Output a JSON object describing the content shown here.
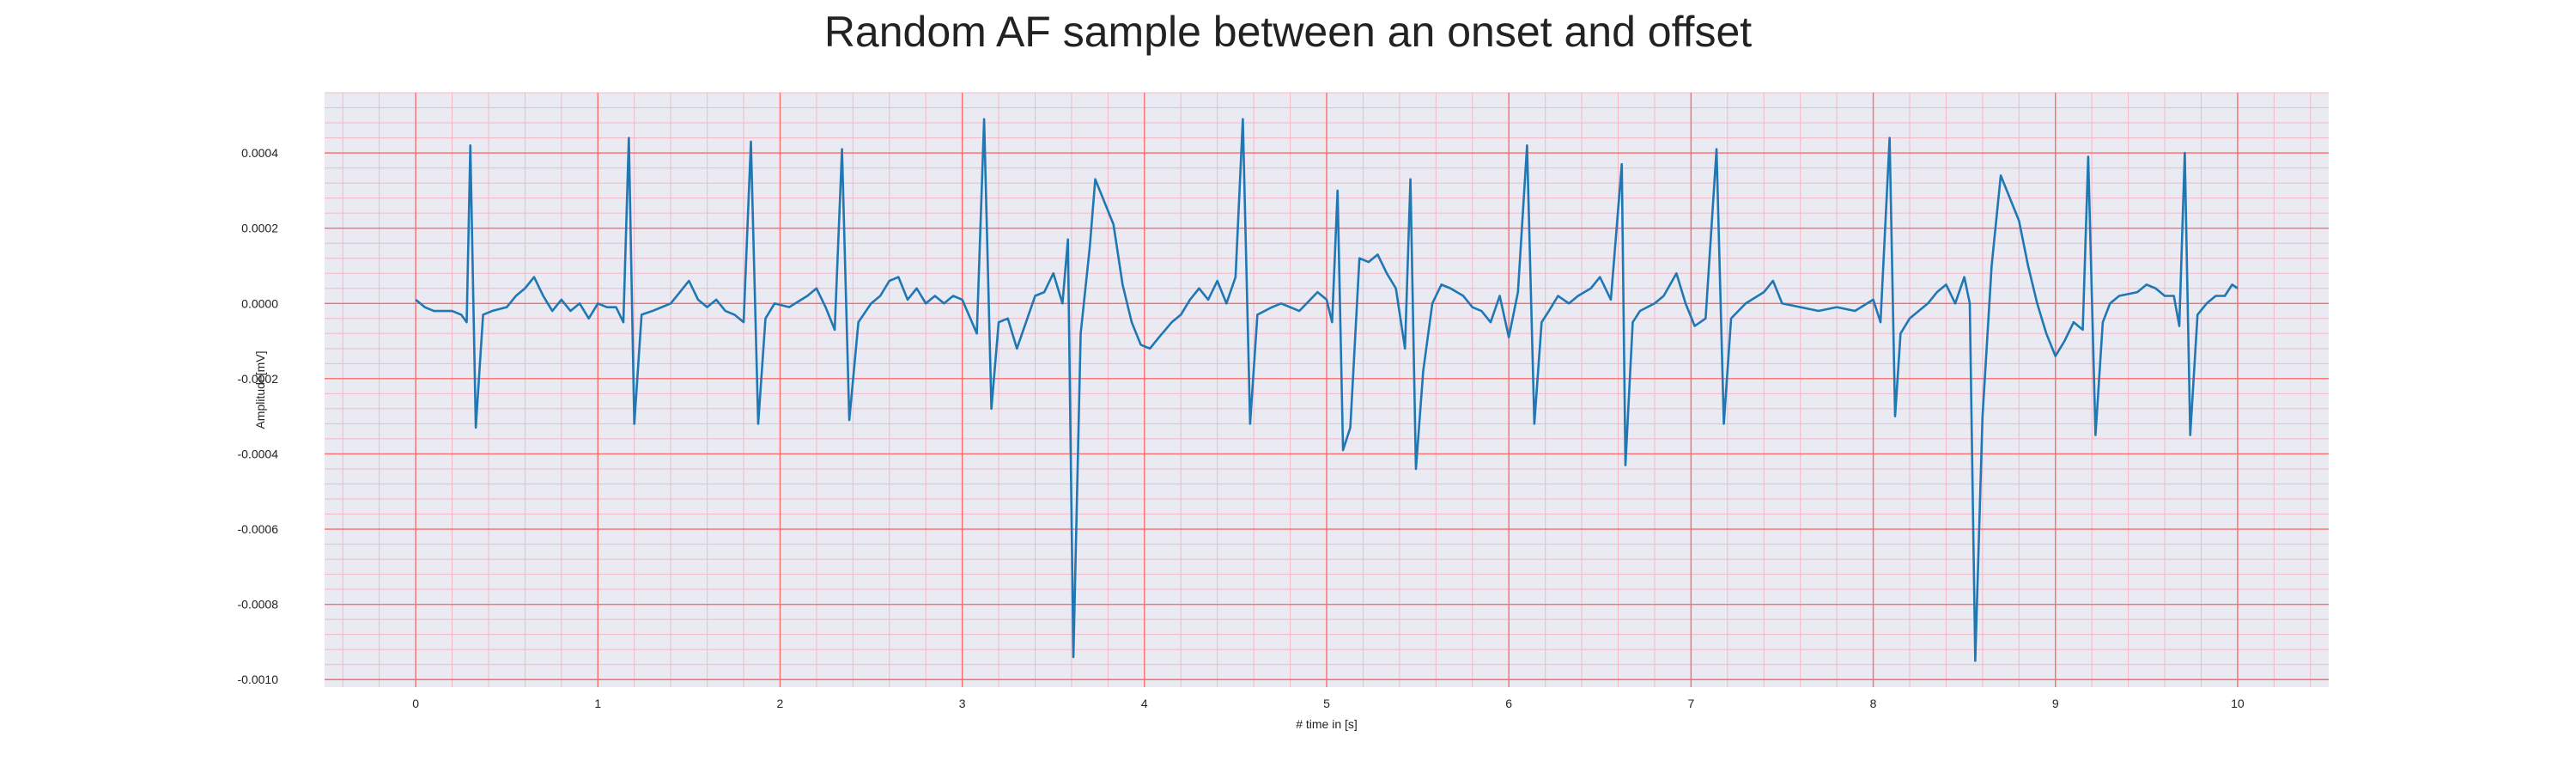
{
  "chart_data": {
    "type": "line",
    "title": "Random AF sample between an onset and offset",
    "xlabel": "# time in [s]",
    "ylabel": "Amplitude[mV]",
    "xlim": [
      -0.5,
      10.5
    ],
    "ylim": [
      -0.00102,
      0.00056
    ],
    "x_ticks": [
      0,
      1,
      2,
      3,
      4,
      5,
      6,
      7,
      8,
      9,
      10
    ],
    "x_tick_labels": [
      "0",
      "1",
      "2",
      "3",
      "4",
      "5",
      "6",
      "7",
      "8",
      "9",
      "10"
    ],
    "y_ticks": [
      0.0004,
      0.0002,
      0.0,
      -0.0002,
      -0.0004,
      -0.0006,
      -0.0008,
      -0.001
    ],
    "y_tick_labels": [
      "0.0004",
      "0.0002",
      "0.0000",
      "-0.0002",
      "-0.0004",
      "-0.0006",
      "-0.0008",
      "-0.0010"
    ],
    "grid": true,
    "legend": "none",
    "colors": {
      "line": "#1f77b4",
      "background": "#eaeaf2",
      "major_grid": "#ff6b6b",
      "minor_grid": "#f3b8c6"
    },
    "series": [
      {
        "values": [
          [
            0.0,
            1e-05
          ],
          [
            0.05,
            -1e-05
          ],
          [
            0.1,
            -2e-05
          ],
          [
            0.15,
            -2e-05
          ],
          [
            0.2,
            -2e-05
          ],
          [
            0.25,
            -3e-05
          ],
          [
            0.28,
            -5e-05
          ],
          [
            0.3,
            0.00042
          ],
          [
            0.33,
            -0.00033
          ],
          [
            0.37,
            -3e-05
          ],
          [
            0.42,
            -2e-05
          ],
          [
            0.5,
            -1e-05
          ],
          [
            0.55,
            2e-05
          ],
          [
            0.6,
            4e-05
          ],
          [
            0.65,
            7e-05
          ],
          [
            0.7,
            2e-05
          ],
          [
            0.75,
            -2e-05
          ],
          [
            0.8,
            1e-05
          ],
          [
            0.85,
            -2e-05
          ],
          [
            0.9,
            0.0
          ],
          [
            0.95,
            -4e-05
          ],
          [
            1.0,
            0.0
          ],
          [
            1.05,
            -1e-05
          ],
          [
            1.1,
            -1e-05
          ],
          [
            1.14,
            -5e-05
          ],
          [
            1.17,
            0.00044
          ],
          [
            1.2,
            -0.00032
          ],
          [
            1.24,
            -3e-05
          ],
          [
            1.3,
            -2e-05
          ],
          [
            1.4,
            0.0
          ],
          [
            1.45,
            3e-05
          ],
          [
            1.5,
            6e-05
          ],
          [
            1.55,
            1e-05
          ],
          [
            1.6,
            -1e-05
          ],
          [
            1.65,
            1e-05
          ],
          [
            1.7,
            -2e-05
          ],
          [
            1.75,
            -3e-05
          ],
          [
            1.8,
            -5e-05
          ],
          [
            1.84,
            0.00043
          ],
          [
            1.88,
            -0.00032
          ],
          [
            1.92,
            -4e-05
          ],
          [
            1.97,
            0.0
          ],
          [
            2.05,
            -1e-05
          ],
          [
            2.15,
            2e-05
          ],
          [
            2.2,
            4e-05
          ],
          [
            2.25,
            -1e-05
          ],
          [
            2.3,
            -7e-05
          ],
          [
            2.34,
            0.00041
          ],
          [
            2.38,
            -0.00031
          ],
          [
            2.43,
            -5e-05
          ],
          [
            2.5,
            0.0
          ],
          [
            2.55,
            2e-05
          ],
          [
            2.6,
            6e-05
          ],
          [
            2.65,
            7e-05
          ],
          [
            2.7,
            1e-05
          ],
          [
            2.75,
            4e-05
          ],
          [
            2.8,
            0.0
          ],
          [
            2.85,
            2e-05
          ],
          [
            2.9,
            0.0
          ],
          [
            2.95,
            2e-05
          ],
          [
            3.0,
            1e-05
          ],
          [
            3.08,
            -8e-05
          ],
          [
            3.12,
            0.00049
          ],
          [
            3.16,
            -0.00028
          ],
          [
            3.2,
            -5e-05
          ],
          [
            3.25,
            -4e-05
          ],
          [
            3.3,
            -0.00012
          ],
          [
            3.35,
            -5e-05
          ],
          [
            3.4,
            2e-05
          ],
          [
            3.45,
            3e-05
          ],
          [
            3.5,
            8e-05
          ],
          [
            3.55,
            0.0
          ],
          [
            3.58,
            0.00017
          ],
          [
            3.61,
            -0.00094
          ],
          [
            3.65,
            -8e-05
          ],
          [
            3.7,
            0.00015
          ],
          [
            3.73,
            0.00033
          ],
          [
            3.78,
            0.00027
          ],
          [
            3.83,
            0.00021
          ],
          [
            3.88,
            5e-05
          ],
          [
            3.93,
            -5e-05
          ],
          [
            3.98,
            -0.00011
          ],
          [
            4.03,
            -0.00012
          ],
          [
            4.08,
            -9e-05
          ],
          [
            4.15,
            -5e-05
          ],
          [
            4.2,
            -3e-05
          ],
          [
            4.25,
            1e-05
          ],
          [
            4.3,
            4e-05
          ],
          [
            4.35,
            1e-05
          ],
          [
            4.4,
            6e-05
          ],
          [
            4.45,
            0.0
          ],
          [
            4.5,
            7e-05
          ],
          [
            4.54,
            0.00049
          ],
          [
            4.58,
            -0.00032
          ],
          [
            4.62,
            -3e-05
          ],
          [
            4.7,
            -1e-05
          ],
          [
            4.75,
            0.0
          ],
          [
            4.85,
            -2e-05
          ],
          [
            4.95,
            3e-05
          ],
          [
            5.0,
            1e-05
          ],
          [
            5.03,
            -5e-05
          ],
          [
            5.06,
            0.0003
          ],
          [
            5.09,
            -0.00039
          ],
          [
            5.13,
            -0.00033
          ],
          [
            5.18,
            0.00012
          ],
          [
            5.23,
            0.00011
          ],
          [
            5.28,
            0.00013
          ],
          [
            5.33,
            8e-05
          ],
          [
            5.38,
            4e-05
          ],
          [
            5.43,
            -0.00012
          ],
          [
            5.46,
            0.00033
          ],
          [
            5.49,
            -0.00044
          ],
          [
            5.53,
            -0.00018
          ],
          [
            5.58,
            0.0
          ],
          [
            5.63,
            5e-05
          ],
          [
            5.68,
            4e-05
          ],
          [
            5.75,
            2e-05
          ],
          [
            5.8,
            -1e-05
          ],
          [
            5.85,
            -2e-05
          ],
          [
            5.9,
            -5e-05
          ],
          [
            5.95,
            2e-05
          ],
          [
            6.0,
            -9e-05
          ],
          [
            6.05,
            3e-05
          ],
          [
            6.1,
            0.00042
          ],
          [
            6.14,
            -0.00032
          ],
          [
            6.18,
            -5e-05
          ],
          [
            6.22,
            -2e-05
          ],
          [
            6.27,
            2e-05
          ],
          [
            6.33,
            0.0
          ],
          [
            6.38,
            2e-05
          ],
          [
            6.45,
            4e-05
          ],
          [
            6.5,
            7e-05
          ],
          [
            6.56,
            1e-05
          ],
          [
            6.62,
            0.00037
          ],
          [
            6.64,
            -0.00043
          ],
          [
            6.68,
            -5e-05
          ],
          [
            6.72,
            -2e-05
          ],
          [
            6.8,
            0.0
          ],
          [
            6.85,
            2e-05
          ],
          [
            6.92,
            8e-05
          ],
          [
            6.97,
            0.0
          ],
          [
            7.02,
            -6e-05
          ],
          [
            7.08,
            -4e-05
          ],
          [
            7.14,
            0.00041
          ],
          [
            7.18,
            -0.00032
          ],
          [
            7.22,
            -4e-05
          ],
          [
            7.3,
            0.0
          ],
          [
            7.4,
            3e-05
          ],
          [
            7.45,
            6e-05
          ],
          [
            7.5,
            0.0
          ],
          [
            7.6,
            -1e-05
          ],
          [
            7.7,
            -2e-05
          ],
          [
            7.8,
            -1e-05
          ],
          [
            7.9,
            -2e-05
          ],
          [
            8.0,
            1e-05
          ],
          [
            8.04,
            -5e-05
          ],
          [
            8.09,
            0.00044
          ],
          [
            8.12,
            -0.0003
          ],
          [
            8.15,
            -8e-05
          ],
          [
            8.2,
            -4e-05
          ],
          [
            8.25,
            -2e-05
          ],
          [
            8.3,
            0.0
          ],
          [
            8.35,
            3e-05
          ],
          [
            8.4,
            5e-05
          ],
          [
            8.45,
            0.0
          ],
          [
            8.5,
            7e-05
          ],
          [
            8.53,
            0.0
          ],
          [
            8.56,
            -0.00095
          ],
          [
            8.6,
            -0.0003
          ],
          [
            8.65,
            0.0001
          ],
          [
            8.7,
            0.00034
          ],
          [
            8.75,
            0.00028
          ],
          [
            8.8,
            0.00022
          ],
          [
            8.85,
            0.0001
          ],
          [
            8.9,
            0.0
          ],
          [
            8.95,
            -8e-05
          ],
          [
            9.0,
            -0.00014
          ],
          [
            9.05,
            -0.0001
          ],
          [
            9.1,
            -5e-05
          ],
          [
            9.15,
            -7e-05
          ],
          [
            9.18,
            0.00039
          ],
          [
            9.22,
            -0.00035
          ],
          [
            9.26,
            -5e-05
          ],
          [
            9.3,
            0.0
          ],
          [
            9.35,
            2e-05
          ],
          [
            9.45,
            3e-05
          ],
          [
            9.5,
            5e-05
          ],
          [
            9.55,
            4e-05
          ],
          [
            9.6,
            2e-05
          ],
          [
            9.65,
            2e-05
          ],
          [
            9.68,
            -6e-05
          ],
          [
            9.71,
            0.0004
          ],
          [
            9.74,
            -0.00035
          ],
          [
            9.78,
            -3e-05
          ],
          [
            9.83,
            0.0
          ],
          [
            9.88,
            2e-05
          ],
          [
            9.93,
            2e-05
          ],
          [
            9.97,
            5e-05
          ],
          [
            10.0,
            4e-05
          ]
        ]
      }
    ]
  }
}
